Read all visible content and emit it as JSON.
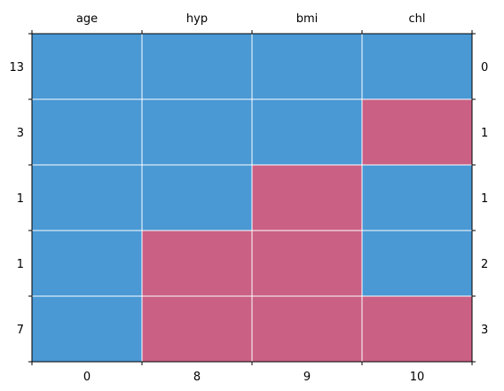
{
  "chart_data": {
    "type": "heatmap",
    "title": "",
    "xlabel": "",
    "ylabel": "",
    "columns": [
      "age",
      "hyp",
      "bmi",
      "chl"
    ],
    "missing_counts_per_column": [
      "0",
      "8",
      "9",
      "10"
    ],
    "row_counts": [
      "13",
      "3",
      "1",
      "1",
      "7"
    ],
    "row_missing_totals": [
      "0",
      "1",
      "1",
      "2",
      "3"
    ],
    "matrix": [
      [
        1,
        1,
        1,
        1
      ],
      [
        1,
        1,
        1,
        0
      ],
      [
        1,
        1,
        0,
        1
      ],
      [
        1,
        0,
        0,
        1
      ],
      [
        1,
        0,
        0,
        0
      ]
    ],
    "colors": {
      "observed": "#4a98d4",
      "missing": "#ca6084",
      "grid": "#ffffff"
    },
    "grid": true
  }
}
